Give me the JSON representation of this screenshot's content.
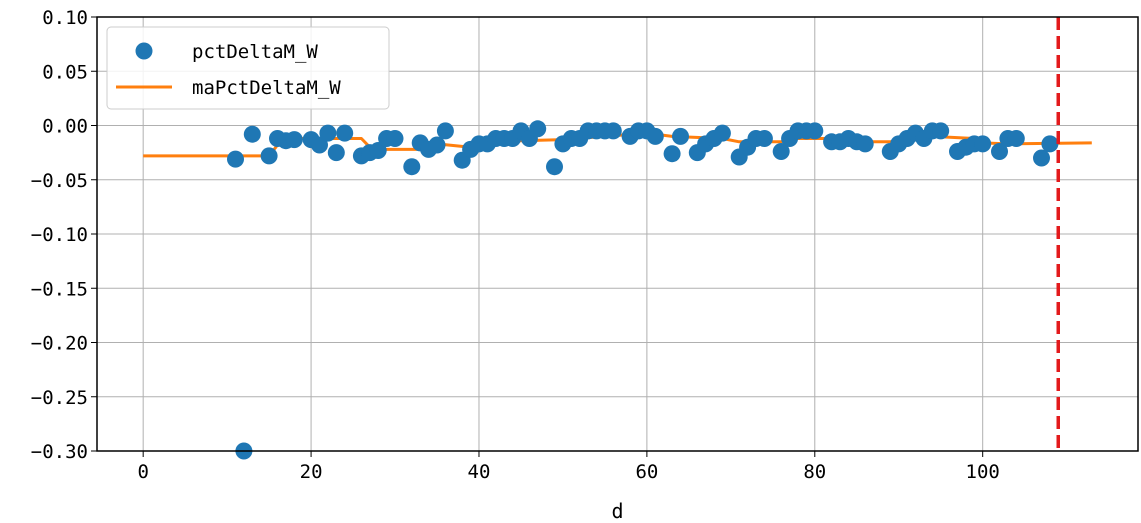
{
  "chart_data": {
    "type": "scatter",
    "xlabel": "d",
    "ylabel": "",
    "xlim": [
      -5.5,
      118.5
    ],
    "ylim": [
      -0.3,
      0.1
    ],
    "grid": true,
    "legend_position": "top-left",
    "x_ticks": [
      0,
      20,
      40,
      60,
      80,
      100
    ],
    "x_tick_labels": [
      "0",
      "20",
      "40",
      "60",
      "80",
      "100"
    ],
    "y_ticks": [
      0.1,
      0.05,
      0.0,
      -0.05,
      -0.1,
      -0.15,
      -0.2,
      -0.25,
      -0.3
    ],
    "y_tick_labels": [
      "0.10",
      "0.05",
      "0.00",
      "−0.05",
      "−0.10",
      "−0.15",
      "−0.20",
      "−0.25",
      "−0.30"
    ],
    "vline": {
      "x": 109,
      "color": "#e31a1c",
      "style": "dashed"
    },
    "series": [
      {
        "name": "pctDeltaM_W",
        "kind": "scatter",
        "color": "#1f77b4",
        "points": [
          [
            11,
            -0.031
          ],
          [
            12,
            -0.3
          ],
          [
            13,
            -0.008
          ],
          [
            15,
            -0.028
          ],
          [
            16,
            -0.012
          ],
          [
            17,
            -0.014
          ],
          [
            18,
            -0.013
          ],
          [
            20,
            -0.013
          ],
          [
            21,
            -0.018
          ],
          [
            22,
            -0.007
          ],
          [
            23,
            -0.025
          ],
          [
            24,
            -0.007
          ],
          [
            26,
            -0.028
          ],
          [
            27,
            -0.025
          ],
          [
            28,
            -0.023
          ],
          [
            29,
            -0.012
          ],
          [
            30,
            -0.012
          ],
          [
            32,
            -0.038
          ],
          [
            33,
            -0.016
          ],
          [
            34,
            -0.022
          ],
          [
            35,
            -0.018
          ],
          [
            36,
            -0.005
          ],
          [
            38,
            -0.032
          ],
          [
            39,
            -0.022
          ],
          [
            40,
            -0.017
          ],
          [
            41,
            -0.017
          ],
          [
            42,
            -0.012
          ],
          [
            43,
            -0.012
          ],
          [
            44,
            -0.012
          ],
          [
            45,
            -0.005
          ],
          [
            46,
            -0.012
          ],
          [
            47,
            -0.003
          ],
          [
            49,
            -0.038
          ],
          [
            50,
            -0.017
          ],
          [
            51,
            -0.012
          ],
          [
            52,
            -0.012
          ],
          [
            53,
            -0.005
          ],
          [
            54,
            -0.005
          ],
          [
            55,
            -0.005
          ],
          [
            56,
            -0.005
          ],
          [
            58,
            -0.01
          ],
          [
            59,
            -0.005
          ],
          [
            60,
            -0.005
          ],
          [
            61,
            -0.01
          ],
          [
            63,
            -0.026
          ],
          [
            64,
            -0.01
          ],
          [
            66,
            -0.025
          ],
          [
            67,
            -0.017
          ],
          [
            68,
            -0.012
          ],
          [
            69,
            -0.007
          ],
          [
            71,
            -0.029
          ],
          [
            72,
            -0.02
          ],
          [
            73,
            -0.012
          ],
          [
            74,
            -0.012
          ],
          [
            76,
            -0.024
          ],
          [
            77,
            -0.012
          ],
          [
            78,
            -0.005
          ],
          [
            79,
            -0.005
          ],
          [
            80,
            -0.005
          ],
          [
            82,
            -0.015
          ],
          [
            83,
            -0.015
          ],
          [
            84,
            -0.012
          ],
          [
            85,
            -0.015
          ],
          [
            86,
            -0.017
          ],
          [
            89,
            -0.024
          ],
          [
            90,
            -0.017
          ],
          [
            91,
            -0.012
          ],
          [
            92,
            -0.007
          ],
          [
            93,
            -0.012
          ],
          [
            94,
            -0.005
          ],
          [
            95,
            -0.005
          ],
          [
            97,
            -0.024
          ],
          [
            98,
            -0.02
          ],
          [
            99,
            -0.017
          ],
          [
            100,
            -0.017
          ],
          [
            102,
            -0.024
          ],
          [
            103,
            -0.012
          ],
          [
            104,
            -0.012
          ],
          [
            107,
            -0.03
          ],
          [
            108,
            -0.017
          ]
        ]
      },
      {
        "name": "maPctDeltaM_W",
        "kind": "line",
        "color": "#ff7f0e",
        "points": [
          [
            0,
            -0.028
          ],
          [
            15,
            -0.028
          ],
          [
            16,
            -0.018
          ],
          [
            17,
            -0.012
          ],
          [
            26,
            -0.012
          ],
          [
            27,
            -0.02
          ],
          [
            28,
            -0.022
          ],
          [
            34,
            -0.022
          ],
          [
            35,
            -0.017
          ],
          [
            39,
            -0.02
          ],
          [
            40,
            -0.017
          ],
          [
            45,
            -0.014
          ],
          [
            50,
            -0.013
          ],
          [
            55,
            -0.01
          ],
          [
            60,
            -0.007
          ],
          [
            63,
            -0.01
          ],
          [
            69,
            -0.012
          ],
          [
            71,
            -0.015
          ],
          [
            76,
            -0.015
          ],
          [
            77,
            -0.012
          ],
          [
            82,
            -0.012
          ],
          [
            84,
            -0.015
          ],
          [
            89,
            -0.015
          ],
          [
            94,
            -0.01
          ],
          [
            99,
            -0.012
          ],
          [
            100,
            -0.016
          ],
          [
            103,
            -0.017
          ],
          [
            113,
            -0.016
          ]
        ]
      }
    ]
  }
}
